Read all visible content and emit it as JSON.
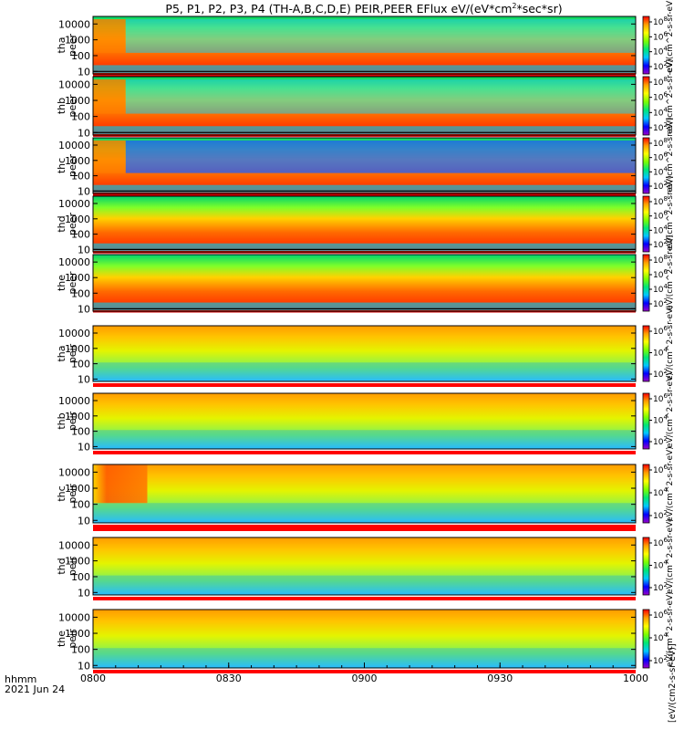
{
  "chart_data": {
    "type": "heatmap",
    "title": "P5, P1, P2, P3, P4 (TH-A,B,C,D,E) PEIR,PEER EFlux eV/(eV*cm2*sec*sr)",
    "title_parts": {
      "prefix": "P5, P1, P2, P3, P4 (TH-A,B,C,D,E) PEIR,PEER EFlux eV/(eV*cm",
      "sup": "2",
      "suffix": "*sec*sr)"
    },
    "x_axis": {
      "label_line1": "hhmm",
      "label_line2": "2021 Jun 24",
      "range_hours": [
        8,
        10
      ],
      "ticks": [
        {
          "value": 8.0,
          "label": "0800"
        },
        {
          "value": 8.5,
          "label": "0830"
        },
        {
          "value": 9.0,
          "label": "0900"
        },
        {
          "value": 9.5,
          "label": "0930"
        },
        {
          "value": 10.0,
          "label": "1000"
        }
      ]
    },
    "y_axis": {
      "scale": "log",
      "range": [
        7,
        30000
      ],
      "ticks": [
        {
          "value": 10,
          "label": "10"
        },
        {
          "value": 100,
          "label": "100"
        },
        {
          "value": 1000,
          "label": "1000"
        },
        {
          "value": 10000,
          "label": "10000"
        }
      ]
    },
    "panels": [
      {
        "probe": "tha",
        "instrument": "peer",
        "ylabel_probe": "tha",
        "ylabel_inst": "peer",
        "colorbar_exponents": [
          "2",
          "4",
          "6",
          "8"
        ],
        "colorbar_unit": "eV/(cm^2-s-sr-eV)"
      },
      {
        "probe": "thb",
        "instrument": "peer",
        "ylabel_probe": "thb",
        "ylabel_inst": "peer",
        "colorbar_exponents": [
          "2",
          "4",
          "6",
          "8"
        ],
        "colorbar_unit": "eV/(cm^2-s-sr-eV)"
      },
      {
        "probe": "thc",
        "instrument": "peer",
        "ylabel_probe": "thc",
        "ylabel_inst": "peer",
        "colorbar_exponents": [
          "2",
          "4",
          "6",
          "8"
        ],
        "colorbar_unit": "eV/(cm^2-s-sr-eV)"
      },
      {
        "probe": "thd",
        "instrument": "peer",
        "ylabel_probe": "thd",
        "ylabel_inst": "peer",
        "colorbar_exponents": [
          "2",
          "4",
          "6",
          "8"
        ],
        "colorbar_unit": "eV/(cm^2-s-sr-eV)"
      },
      {
        "probe": "the",
        "instrument": "peer",
        "ylabel_probe": "the",
        "ylabel_inst": "peer",
        "colorbar_exponents": [
          "2",
          "4",
          "6",
          "8"
        ],
        "colorbar_unit": "eV/(cm^2-s-sr-eV)"
      },
      {
        "probe": "tha",
        "instrument": "peir",
        "ylabel_probe": "tha",
        "ylabel_inst": "peir",
        "colorbar_exponents": [
          "2",
          "4",
          "6"
        ],
        "colorbar_unit": "eV/(cm^2-s-sr-eV)"
      },
      {
        "probe": "thb",
        "instrument": "peir",
        "ylabel_probe": "thb",
        "ylabel_inst": "peir",
        "colorbar_exponents": [
          "2",
          "4",
          "6"
        ],
        "colorbar_unit": "eV/(cm^2-s-sr-eV)"
      },
      {
        "probe": "thc",
        "instrument": "peir",
        "ylabel_probe": "thc",
        "ylabel_inst": "peir",
        "colorbar_exponents": [
          "2",
          "4",
          "6"
        ],
        "colorbar_unit": "eV/(cm^2-s-sr-eV)"
      },
      {
        "probe": "thd",
        "instrument": "peir",
        "ylabel_probe": "thd",
        "ylabel_inst": "peir",
        "colorbar_exponents": [
          "2",
          "4",
          "6"
        ],
        "colorbar_unit": "eV/(cm^2-s-sr-eV)"
      },
      {
        "probe": "the",
        "instrument": "peir",
        "ylabel_probe": "the",
        "ylabel_inst": "peir",
        "colorbar_exponents": [
          "2",
          "4",
          "6"
        ],
        "colorbar_unit": "eV/(cm^2-s-sr-eV)"
      }
    ],
    "colorbar": {
      "colormap": "rainbow",
      "colors": [
        "#9b00c8",
        "#0000ff",
        "#00c8ff",
        "#00e676",
        "#7cff00",
        "#ffff00",
        "#ffa000",
        "#ff0000"
      ],
      "unit_label": "[eV/(cm2-s-sr-eV)]"
    },
    "grid": false,
    "legend": "none"
  }
}
